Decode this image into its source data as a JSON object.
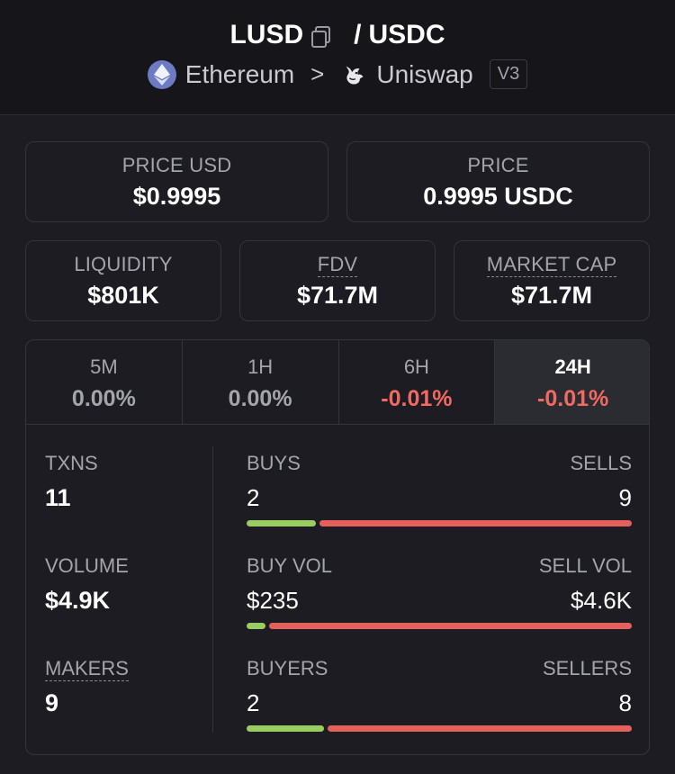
{
  "header": {
    "base_token": "LUSD",
    "separator": "/",
    "quote_token": "USDC",
    "chain": "Ethereum",
    "chevron": ">",
    "dex": "Uniswap",
    "version": "V3",
    "icons": {
      "copy": "copy-icon",
      "chain": "ethereum-icon",
      "dex": "uniswap-icon"
    }
  },
  "price_cards": [
    {
      "label": "PRICE USD",
      "value": "$0.9995"
    },
    {
      "label": "PRICE",
      "value": "0.9995 USDC"
    }
  ],
  "metric_cards": [
    {
      "label": "LIQUIDITY",
      "value": "$801K"
    },
    {
      "label": "FDV",
      "value": "$71.7M"
    },
    {
      "label": "MARKET CAP",
      "value": "$71.7M"
    }
  ],
  "timeframes": [
    {
      "label": "5M",
      "change": "0.00%"
    },
    {
      "label": "1H",
      "change": "0.00%"
    },
    {
      "label": "6H",
      "change": "-0.01%"
    },
    {
      "label": "24H",
      "change": "-0.01%",
      "selected": true
    }
  ],
  "stats": {
    "txns": {
      "label": "TXNS",
      "value": "11"
    },
    "volume": {
      "label": "VOLUME",
      "value": "$4.9K"
    },
    "makers": {
      "label": "MAKERS",
      "value": "9"
    }
  },
  "breakdown": {
    "buys_sells": {
      "left_label": "BUYS",
      "right_label": "SELLS",
      "left_value": "2",
      "right_value": "9",
      "left_fraction": 0.18
    },
    "volumes": {
      "left_label": "BUY VOL",
      "right_label": "SELL VOL",
      "left_value": "$235",
      "right_value": "$4.6K",
      "left_fraction": 0.05
    },
    "buyers_sellers": {
      "left_label": "BUYERS",
      "right_label": "SELLERS",
      "left_value": "2",
      "right_value": "8",
      "left_fraction": 0.2
    }
  },
  "colors": {
    "positive": "#9acd5f",
    "negative": "#e4605a",
    "negative_text": "#f06a62",
    "background": "#1c1c22"
  }
}
